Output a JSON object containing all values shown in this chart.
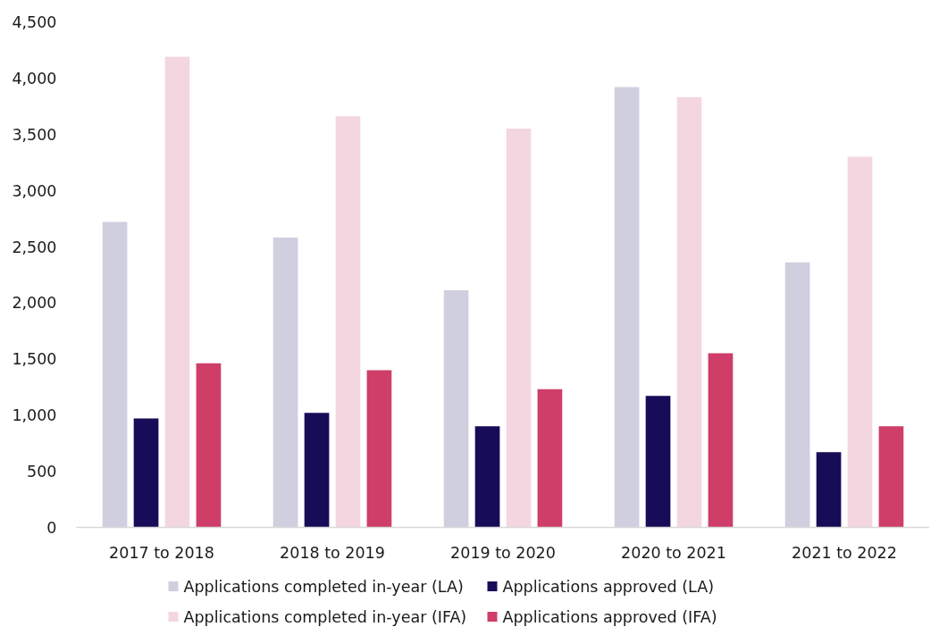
{
  "chart_data": {
    "type": "bar",
    "categories": [
      "2017 to 2018",
      "2018 to 2019",
      "2019 to 2020",
      "2020 to 2021",
      "2021 to 2022"
    ],
    "series": [
      {
        "name": "Applications completed in-year (LA)",
        "color": "#d0cfdf",
        "values": [
          2720,
          2580,
          2110,
          3920,
          2360
        ]
      },
      {
        "name": "Applications approved (LA)",
        "color": "#170c57",
        "values": [
          970,
          1020,
          900,
          1170,
          670
        ]
      },
      {
        "name": "Applications completed in-year (IFA)",
        "color": "#f4d6e1",
        "values": [
          4190,
          3660,
          3550,
          3830,
          3300
        ]
      },
      {
        "name": "Applications approved (IFA)",
        "color": "#cf3d69",
        "values": [
          1460,
          1400,
          1230,
          1550,
          900
        ]
      }
    ],
    "ylim": [
      0,
      4500
    ],
    "yticks": [
      0,
      500,
      {
        "value": 1000,
        "label": "1,000"
      },
      {
        "value": 1500,
        "label": "1,500"
      },
      {
        "value": 2000,
        "label": "2,000"
      },
      {
        "value": 2500,
        "label": "2,500"
      },
      {
        "value": 3000,
        "label": "3,000"
      },
      {
        "value": 3500,
        "label": "3,500"
      },
      {
        "value": 4000,
        "label": "4,000"
      },
      {
        "value": 4500,
        "label": "4,500"
      }
    ],
    "legend": "bottom"
  }
}
